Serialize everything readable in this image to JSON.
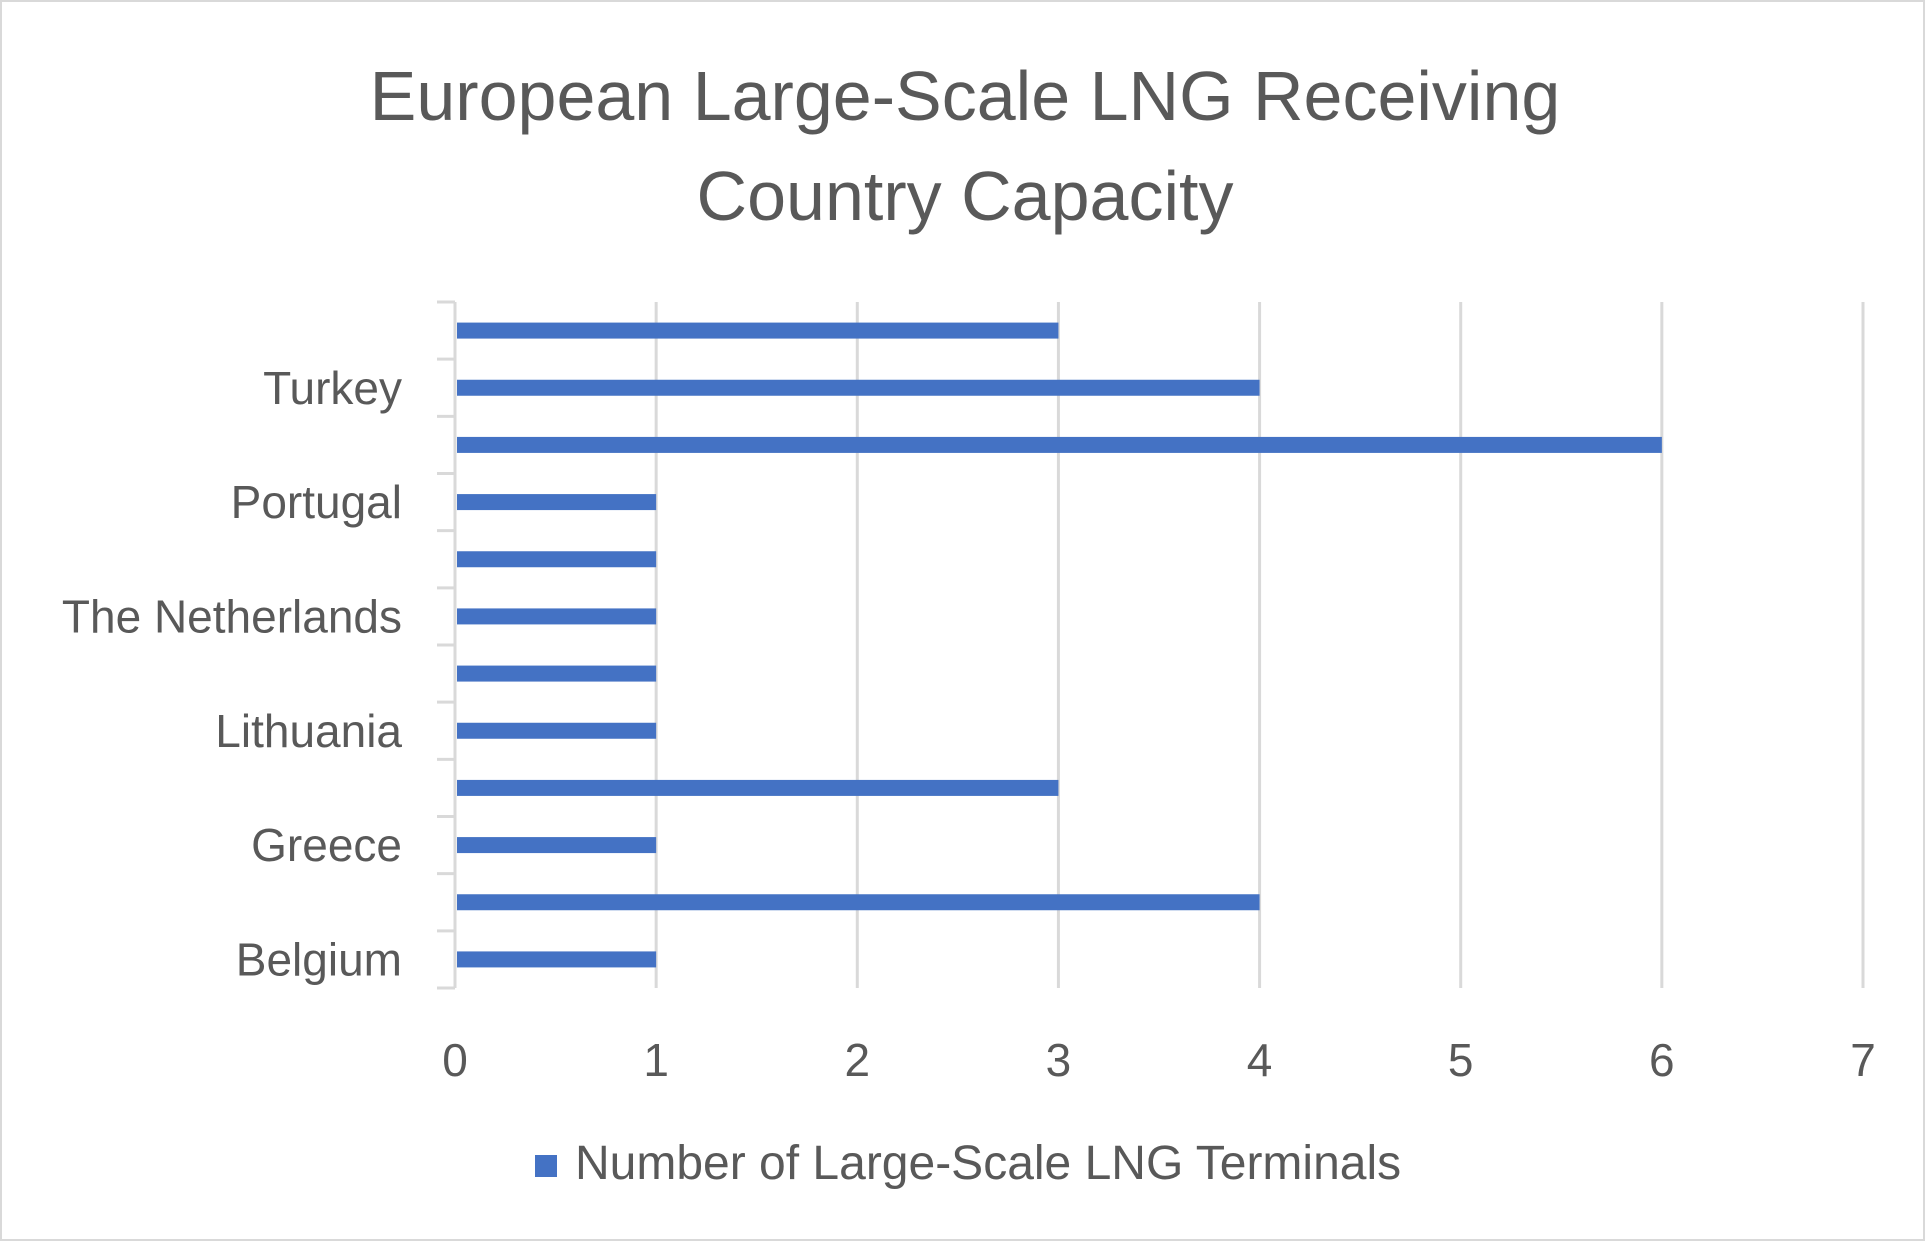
{
  "chart_data": {
    "type": "bar",
    "orientation": "horizontal",
    "title": "European Large-Scale LNG Receiving Country Capacity",
    "title_lines": [
      "European Large-Scale LNG Receiving",
      "Country Capacity"
    ],
    "categories": [
      "Belgium",
      "",
      "Greece",
      "",
      "Lithuania",
      "",
      "The Netherlands",
      "",
      "Portugal",
      "",
      "Turkey",
      ""
    ],
    "series": [
      {
        "name": "Number of Large-Scale LNG Terminals",
        "values": [
          1,
          4,
          1,
          3,
          1,
          1,
          1,
          1,
          1,
          6,
          4,
          3
        ]
      }
    ],
    "xlim": [
      0,
      7
    ],
    "x_ticks": [
      "0",
      "1",
      "2",
      "3",
      "4",
      "5",
      "6",
      "7"
    ],
    "xlabel": "",
    "ylabel": "",
    "grid": "vertical",
    "legend_position": "bottom",
    "colors": {
      "bar": "#4472c4",
      "gridline": "#d9d9d9",
      "text": "#595959",
      "border": "#d9d9d9"
    }
  }
}
